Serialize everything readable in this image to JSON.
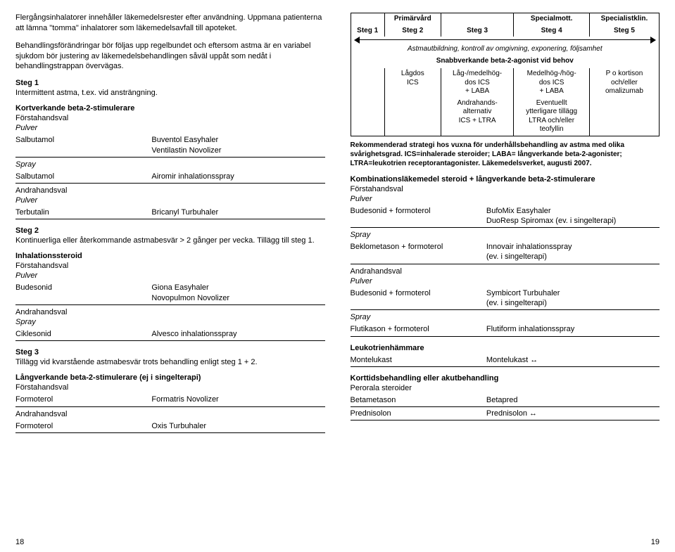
{
  "left": {
    "intro1": "Flergångsinhalatorer innehåller läkemedelsrester efter användning. Uppmana patienterna att lämna \"tomma\" inhalatorer som läkemedelsavfall till apoteket.",
    "intro2": "Behandlingsförändringar bör följas upp regelbundet och eftersom astma är en variabel sjukdom bör justering av läkemedelsbehandlingen såväl uppåt som nedåt i behandlingstrappan övervägas.",
    "steg1_title": "Steg 1",
    "steg1_body": "Intermittent astma, t.ex. vid ansträngning.",
    "kb2s": "Kortverkande beta-2-stimulerare",
    "forsta": "Förstahandsval",
    "pulver": "Pulver",
    "spray": "Spray",
    "andra": "Andrahandsval",
    "kb2s_tbl1": [
      [
        "Salbutamol",
        "Buventol Easyhaler\nVentilastin Novolizer"
      ]
    ],
    "kb2s_tbl2": [
      [
        "Salbutamol",
        "Airomir inhalationsspray"
      ]
    ],
    "kb2s_tbl3": [
      [
        "Terbutalin",
        "Bricanyl Turbuhaler"
      ]
    ],
    "steg2_title": "Steg 2",
    "steg2_body": "Kontinuerliga eller återkommande astmabesvär > 2 gånger per vecka. Tillägg till steg 1.",
    "inh": "Inhalationssteroid",
    "inh_tbl1": [
      [
        "Budesonid",
        "Giona Easyhaler\nNovopulmon Novolizer"
      ]
    ],
    "inh_tbl2": [
      [
        "Ciklesonid",
        "Alvesco inhalationsspray"
      ]
    ],
    "steg3_title": "Steg 3",
    "steg3_body": "Tillägg vid kvarstående astmabesvär trots behandling enligt steg 1 + 2.",
    "lb2s": "Långverkande beta-2-stimulerare (ej i singelterapi)",
    "lb2s_tbl1": [
      [
        "Formoterol",
        "Formatris Novolizer"
      ]
    ],
    "lb2s_tbl2": [
      [
        "Formoterol",
        "Oxis Turbuhaler"
      ]
    ],
    "page_num": "18"
  },
  "right": {
    "diagram": {
      "top_row": [
        "",
        "Primärvård",
        "",
        "Specialmott.",
        "Specialistklin."
      ],
      "steg_row": [
        "Steg 1",
        "Steg 2",
        "Steg 3",
        "Steg 4",
        "Steg 5"
      ],
      "span1": "Astmautbildning, kontroll av omgivning, exponering, följsamhet",
      "span2": "Snabbverkande beta-2-agonist vid behov",
      "row3": [
        "",
        "Lågdos\nICS",
        "Låg-/medelhög-\ndos ICS\n+ LABA",
        "Medelhög-/hög-\ndos ICS\n+ LABA",
        "P o kortison\noch/eller\nomalizumab"
      ],
      "row4": [
        "",
        "",
        "Andrahands-\nalternativ\nICS + LTRA",
        "Eventuellt\nytterligare tillägg\nLTRA och/eller\nteofyllin",
        ""
      ]
    },
    "caption": "Rekommenderad strategi hos vuxna för underhållsbehandling av astma med olika svårighetsgrad. ICS=inhalerade steroider; LABA= långverkande beta-2-agonister; LTRA=leukotrien receptorantagonister. Läkemedelsverket, augusti 2007.",
    "komb_title": "Kombinationsläkemedel steroid + långverkande beta-2-stimulerare",
    "forsta": "Förstahandsval",
    "pulver": "Pulver",
    "spray": "Spray",
    "andra": "Andrahandsval",
    "komb_tbl1": [
      [
        "Budesonid + formoterol",
        "BufoMix Easyhaler\nDuoResp Spiromax (ev. i singelterapi)"
      ]
    ],
    "komb_tbl2": [
      [
        "Beklometason + formoterol",
        "Innovair inhalationsspray\n(ev. i singelterapi)"
      ]
    ],
    "komb_tbl3": [
      [
        "Budesonid + formoterol",
        "Symbicort Turbuhaler\n(ev. i singelterapi)"
      ]
    ],
    "komb_tbl4": [
      [
        "Flutikason + formoterol",
        "Flutiform inhalationsspray"
      ]
    ],
    "leuk_title": "Leukotrienhämmare",
    "leuk_tbl": [
      [
        "Montelukast",
        "Montelukast"
      ]
    ],
    "kort_title": "Korttidsbehandling eller akutbehandling",
    "peroral": "Perorala steroider",
    "kort_tbl": [
      [
        "Betametason",
        "Betapred"
      ],
      [
        "Prednisolon",
        "Prednisolon"
      ]
    ],
    "page_num": "19"
  }
}
